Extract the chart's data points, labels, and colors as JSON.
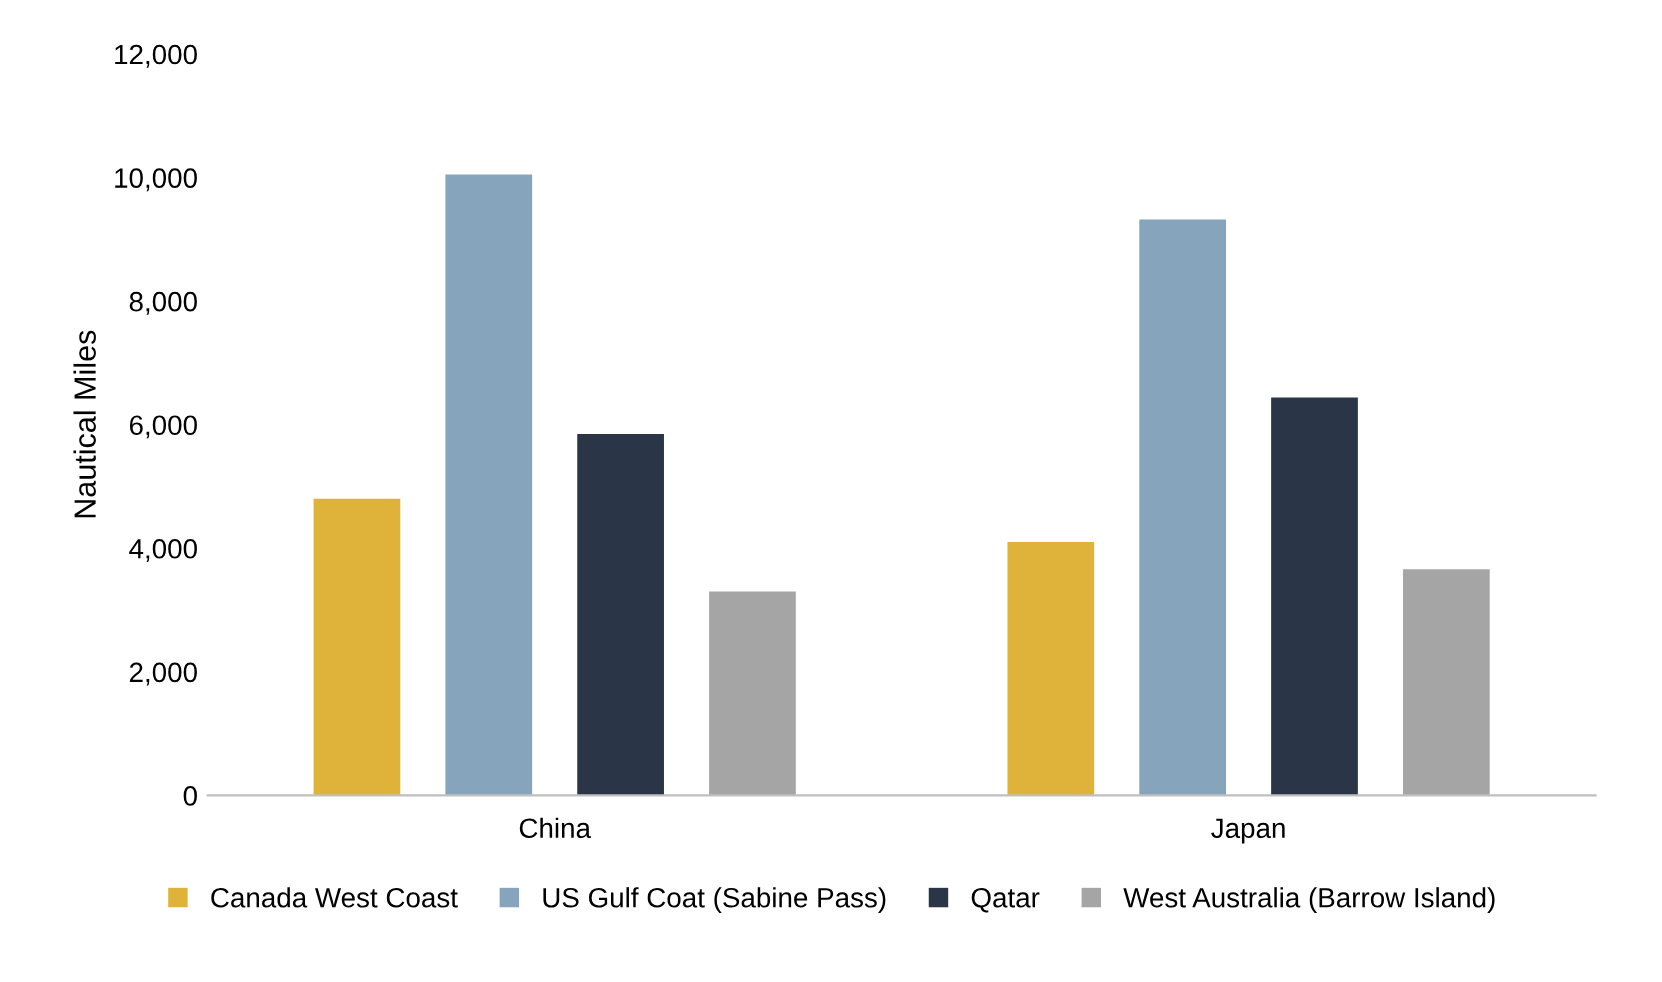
{
  "chart_data": {
    "type": "bar",
    "ylabel": "Nautical Miles",
    "categories": [
      "China",
      "Japan"
    ],
    "series": [
      {
        "name": "Canada West Coast",
        "color": "#dfb23a",
        "values": [
          4800,
          4100
        ]
      },
      {
        "name": "US Gulf Coat (Sabine Pass)",
        "color": "#86a5bd",
        "values": [
          10050,
          9320
        ]
      },
      {
        "name": "Qatar",
        "color": "#2a3647",
        "values": [
          5850,
          6440
        ]
      },
      {
        "name": "West Australia (Barrow Island)",
        "color": "#a5a5a5",
        "values": [
          3300,
          3660
        ]
      }
    ],
    "ylim": [
      0,
      12000
    ],
    "yticks": [
      {
        "value": 0,
        "label": "0"
      },
      {
        "value": 2000,
        "label": "2,000"
      },
      {
        "value": 4000,
        "label": "4,000"
      },
      {
        "value": 6000,
        "label": "6,000"
      },
      {
        "value": 8000,
        "label": "8,000"
      },
      {
        "value": 10000,
        "label": "10,000"
      },
      {
        "value": 12000,
        "label": "12,000"
      }
    ],
    "grid": false,
    "legend": "bottom"
  }
}
